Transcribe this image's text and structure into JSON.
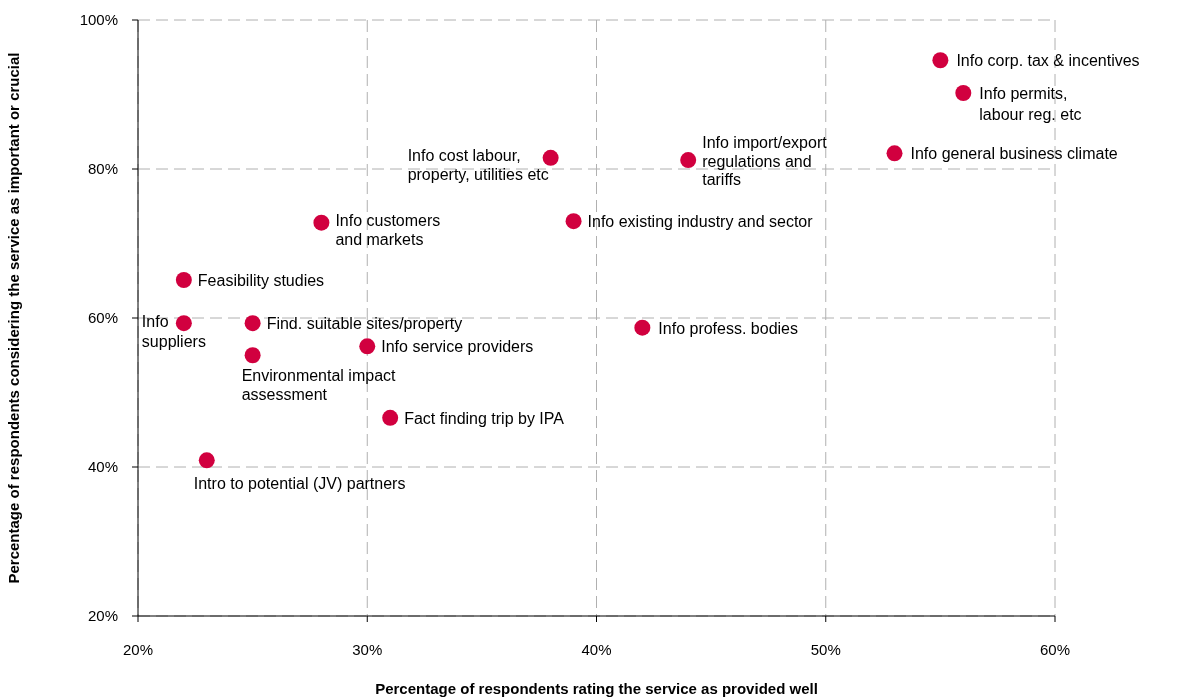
{
  "chart_data": {
    "type": "scatter",
    "xlabel": "Percentage of respondents rating the service as provided well",
    "ylabel": "Percentage of respondents considering the service as important or crucial",
    "x": [
      55,
      56,
      53,
      44,
      38,
      39,
      28,
      22,
      22,
      25,
      25,
      30,
      42,
      31,
      23
    ],
    "series": [
      {
        "color": "#d1003f",
        "values": [
          94.6,
          90.2,
          82.1,
          81.2,
          81.5,
          73.0,
          72.8,
          65.1,
          59.3,
          59.3,
          55.0,
          56.2,
          58.7,
          46.6,
          40.9
        ]
      }
    ],
    "xlim": [
      20,
      60
    ],
    "xticks": [
      {
        "value": 20,
        "label": "20%"
      },
      {
        "value": 30,
        "label": "30%"
      },
      {
        "value": 40,
        "label": "40%"
      },
      {
        "value": 50,
        "label": "50%"
      },
      {
        "value": 60,
        "label": "60%"
      }
    ],
    "ylim": [
      20,
      100
    ],
    "yticks": [
      {
        "value": 20,
        "label": "20%"
      },
      {
        "value": 40,
        "label": "40%"
      },
      {
        "value": 60,
        "label": "60%"
      },
      {
        "value": 80,
        "label": "80%"
      },
      {
        "value": 100,
        "label": "100%"
      }
    ],
    "grid": true,
    "marker": "circle",
    "legend": false,
    "annotations": [
      {
        "text": "Info corp. tax & incentives",
        "x": 55,
        "y": 94.6
      },
      {
        "text": "Info permits,\nlabour reg. etc",
        "x": 56,
        "y": 90.2
      },
      {
        "text": "Info general business climate",
        "x": 53,
        "y": 82.1
      },
      {
        "text": "Info import/export\nregulations and\ntariffs",
        "x": 44,
        "y": 81.2
      },
      {
        "text": "Info cost labour,\nproperty, utilities etc",
        "x": 38,
        "y": 81.5
      },
      {
        "text": "Info existing industry and sector",
        "x": 39,
        "y": 73.0
      },
      {
        "text": "Info customers\nand markets",
        "x": 28,
        "y": 72.8
      },
      {
        "text": "Feasibility studies",
        "x": 22,
        "y": 65.1
      },
      {
        "text": "Info\nsuppliers",
        "x": 22,
        "y": 59.3
      },
      {
        "text": "Find. suitable sites/property",
        "x": 25,
        "y": 59.3
      },
      {
        "text": "Environmental impact\nassessment",
        "x": 25,
        "y": 55.0
      },
      {
        "text": "Info service providers",
        "x": 30,
        "y": 56.2
      },
      {
        "text": "Info profess. bodies",
        "x": 42,
        "y": 58.7
      },
      {
        "text": "Fact finding trip by IPA",
        "x": 31,
        "y": 46.6
      },
      {
        "text": "Intro to potential (JV) partners",
        "x": 23,
        "y": 40.9
      }
    ]
  }
}
